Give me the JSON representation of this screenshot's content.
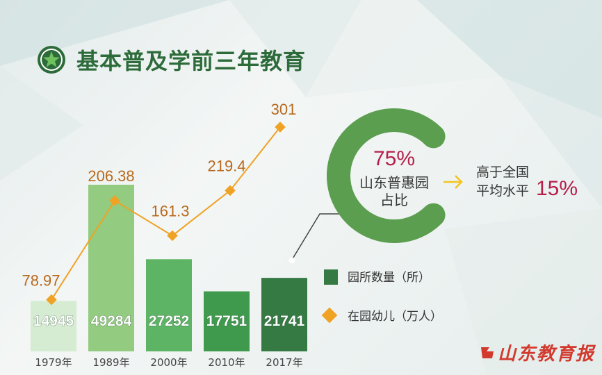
{
  "header": {
    "title": "基本普及学前三年教育",
    "icon": "star-icon"
  },
  "chart_data": {
    "type": "bar",
    "categories": [
      "1979年",
      "1989年",
      "2000年",
      "2010年",
      "2017年"
    ],
    "series": [
      {
        "name": "园所数量（所）",
        "kind": "bar",
        "values": [
          14945,
          49284,
          27252,
          17751,
          21741
        ],
        "colors": [
          "#d6ecd2",
          "#93cc80",
          "#5db465",
          "#3f9a4e",
          "#357a43"
        ]
      },
      {
        "name": "在园幼儿（万人）",
        "kind": "line",
        "values": [
          78.97,
          206.38,
          161.3,
          219.4,
          301
        ],
        "labels": [
          "78.97",
          "206.38",
          "161.3",
          "219.4",
          "301"
        ],
        "color": "#f0a224"
      }
    ],
    "legend_position": "right",
    "grid": false
  },
  "donut": {
    "percent": 0.75,
    "percent_label": "75%",
    "label_line1": "山东普惠园",
    "label_line2": "占比",
    "color": "#5c9e4f"
  },
  "comparison": {
    "line1": "高于全国",
    "line2": "平均水平",
    "value": "15%"
  },
  "colors": {
    "title": "#2d6b3a",
    "value_label": "#b86a1e",
    "accent": "#b51f4a",
    "arrow": "#f3c51e"
  },
  "logo": {
    "text": "山东教育报"
  }
}
